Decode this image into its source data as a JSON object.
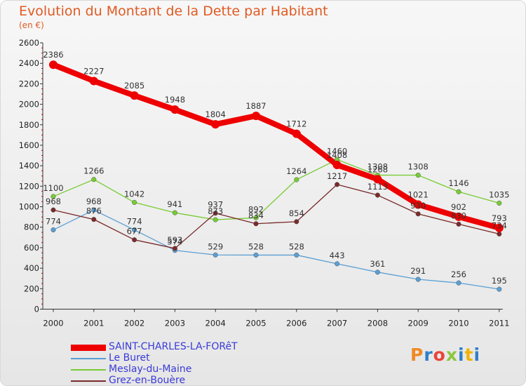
{
  "header": {
    "title": "Evolution du Montant de la Dette par Habitant",
    "unit": "(en €)"
  },
  "logo": {
    "text": "Proxiti",
    "colors": [
      "#f08a24",
      "#2f7ec8",
      "#e8433a",
      "#8cc63f",
      "#2f7ec8",
      "#f0b400",
      "#2f7ec8"
    ]
  },
  "chart_data": {
    "type": "line",
    "title": "Evolution du Montant de la Dette par Habitant",
    "subtitle": "(en €)",
    "x": [
      "2000",
      "2001",
      "2002",
      "2003",
      "2004",
      "2005",
      "2006",
      "2007",
      "2008",
      "2009",
      "2010",
      "2011"
    ],
    "ylim": [
      0,
      2600
    ],
    "yticks": [
      0,
      200,
      400,
      600,
      800,
      1000,
      1200,
      1400,
      1600,
      1800,
      2000,
      2200,
      2400,
      2600
    ],
    "grid": false,
    "legend": "bottom-left",
    "series": [
      {
        "name": "SAINT-CHARLES-LA-FORêT",
        "color": "#ee0000",
        "values": [
          2386,
          2227,
          2085,
          1948,
          1804,
          1887,
          1712,
          1408,
          1268,
          1021,
          902,
          793
        ]
      },
      {
        "name": "Le Buret",
        "color": "#5a9fd4",
        "values": [
          774,
          968,
          774,
          574,
          529,
          528,
          528,
          443,
          361,
          291,
          256,
          195
        ]
      },
      {
        "name": "Meslay-du-Maine",
        "color": "#77cc33",
        "values": [
          1100,
          1266,
          1042,
          941,
          873,
          892,
          1264,
          1460,
          1308,
          1308,
          1146,
          1035
        ]
      },
      {
        "name": "Grez-en-Bouère",
        "color": "#7a2a2a",
        "values": [
          968,
          876,
          677,
          593,
          937,
          834,
          854,
          1217,
          1113,
          930,
          830,
          734
        ]
      }
    ]
  }
}
